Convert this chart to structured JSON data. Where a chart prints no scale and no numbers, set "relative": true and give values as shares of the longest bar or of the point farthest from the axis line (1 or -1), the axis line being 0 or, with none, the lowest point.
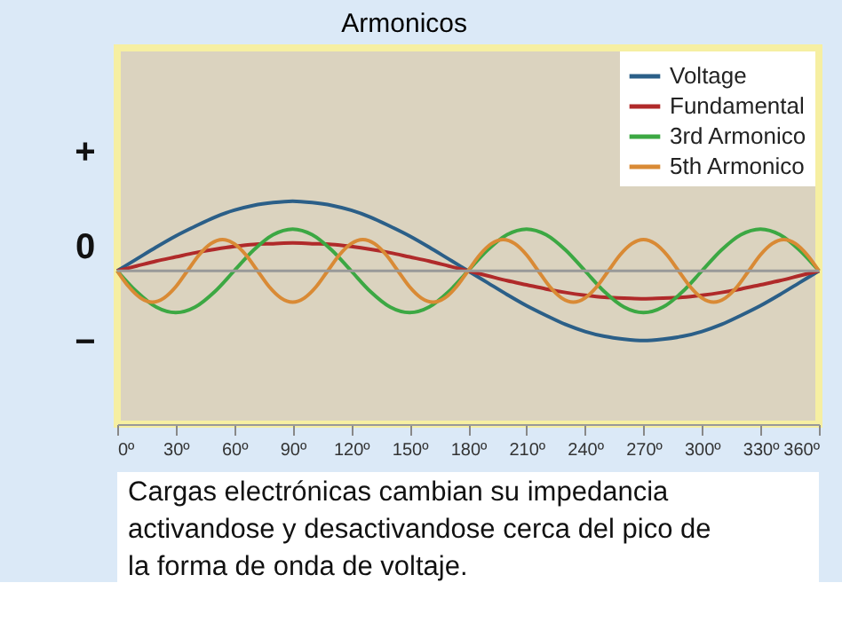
{
  "chart_data": {
    "type": "line",
    "title": "Armonicos",
    "relative": true,
    "xlim": [
      0,
      360
    ],
    "xticks": [
      {
        "value": 0,
        "label": "0º"
      },
      {
        "value": 30,
        "label": "30º"
      },
      {
        "value": 60,
        "label": "60º"
      },
      {
        "value": 90,
        "label": "90º"
      },
      {
        "value": 120,
        "label": "120º"
      },
      {
        "value": 150,
        "label": "150º"
      },
      {
        "value": 180,
        "label": "180º"
      },
      {
        "value": 210,
        "label": "210º"
      },
      {
        "value": 240,
        "label": "240º"
      },
      {
        "value": 270,
        "label": "270º"
      },
      {
        "value": 300,
        "label": "300º"
      },
      {
        "value": 330,
        "label": "330º"
      },
      {
        "value": 360,
        "label": "360º"
      }
    ],
    "x": [
      0,
      10,
      20,
      30,
      40,
      50,
      60,
      70,
      80,
      90,
      100,
      110,
      120,
      130,
      140,
      150,
      160,
      170,
      180,
      190,
      200,
      210,
      220,
      230,
      240,
      250,
      260,
      270,
      280,
      290,
      300,
      310,
      320,
      330,
      340,
      350,
      360
    ],
    "series": [
      {
        "name": "Voltage",
        "color": "#2b5f88",
        "values": [
          0,
          0.17,
          0.34,
          0.5,
          0.64,
          0.77,
          0.87,
          0.94,
          0.98,
          1,
          0.98,
          0.94,
          0.87,
          0.77,
          0.64,
          0.5,
          0.34,
          0.17,
          0,
          -0.17,
          -0.34,
          -0.5,
          -0.64,
          -0.77,
          -0.87,
          -0.94,
          -0.98,
          -1,
          -0.98,
          -0.94,
          -0.87,
          -0.77,
          -0.64,
          -0.5,
          -0.34,
          -0.17,
          0
        ]
      },
      {
        "name": "Fundamental",
        "color": "#b02a2a",
        "values": [
          0,
          0.07,
          0.14,
          0.2,
          0.26,
          0.31,
          0.35,
          0.38,
          0.39,
          0.4,
          0.39,
          0.38,
          0.35,
          0.31,
          0.26,
          0.2,
          0.14,
          0.07,
          0,
          -0.07,
          -0.14,
          -0.2,
          -0.26,
          -0.31,
          -0.35,
          -0.38,
          -0.39,
          -0.4,
          -0.39,
          -0.38,
          -0.35,
          -0.31,
          -0.26,
          -0.2,
          -0.14,
          -0.07,
          0
        ]
      },
      {
        "name": "3rd Armonico",
        "color": "#3ca843",
        "values": [
          0,
          -0.3,
          -0.52,
          -0.6,
          -0.52,
          -0.3,
          0,
          0.3,
          0.52,
          0.6,
          0.52,
          0.3,
          0,
          -0.3,
          -0.52,
          -0.6,
          -0.52,
          -0.3,
          0,
          0.3,
          0.52,
          0.6,
          0.52,
          0.3,
          0,
          -0.3,
          -0.52,
          -0.6,
          -0.52,
          -0.3,
          0,
          0.3,
          0.52,
          0.6,
          0.52,
          0.3,
          0
        ]
      },
      {
        "name": "5th Armonico",
        "color": "#d98a35",
        "x": [
          0,
          6,
          12,
          18,
          24,
          30,
          36,
          42,
          48,
          54,
          60,
          66,
          72,
          78,
          84,
          90,
          96,
          102,
          108,
          114,
          120,
          126,
          132,
          138,
          144,
          150,
          156,
          162,
          168,
          174,
          180,
          186,
          192,
          198,
          204,
          210,
          216,
          222,
          228,
          234,
          240,
          246,
          252,
          258,
          264,
          270,
          276,
          282,
          288,
          294,
          300,
          306,
          312,
          318,
          324,
          330,
          336,
          342,
          348,
          354,
          360
        ],
        "values": [
          0,
          -0.23,
          -0.39,
          -0.45,
          -0.39,
          -0.23,
          0,
          0.23,
          0.39,
          0.45,
          0.39,
          0.23,
          0,
          -0.23,
          -0.39,
          -0.45,
          -0.39,
          -0.23,
          0,
          0.23,
          0.39,
          0.45,
          0.39,
          0.23,
          0,
          -0.23,
          -0.39,
          -0.45,
          -0.39,
          -0.23,
          0,
          0.23,
          0.39,
          0.45,
          0.39,
          0.23,
          0,
          -0.23,
          -0.39,
          -0.45,
          -0.39,
          -0.23,
          0,
          0.23,
          0.39,
          0.45,
          0.39,
          0.23,
          0,
          -0.23,
          -0.39,
          -0.45,
          -0.39,
          -0.23,
          0,
          0.23,
          0.39,
          0.45,
          0.39,
          0.23,
          0
        ]
      }
    ],
    "legend": "top right",
    "line_style": "solid",
    "annotations": [
      "+",
      "0",
      "−",
      "Cargas electrónicas cambian su impedancia activandose y desactivandose cerca del pico de la forma de onda de voltaje."
    ]
  }
}
